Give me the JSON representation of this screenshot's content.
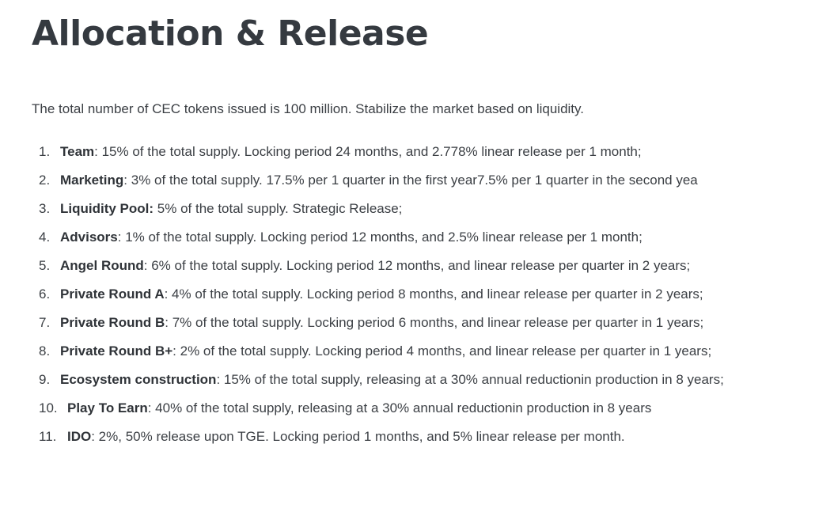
{
  "title": "Allocation & Release",
  "intro": "The total number of CEC tokens issued is 100 million. Stabilize the market based on liquidity.",
  "items": [
    {
      "num": "1.",
      "name": "Team",
      "text": ": 15% of the total supply. Locking period 24 months, and 2.778% linear release per 1 month;"
    },
    {
      "num": "2.",
      "name": "Marketing",
      "text": ": 3% of the total supply. 17.5% per 1 quarter in the first year7.5% per 1 quarter in the second yea"
    },
    {
      "num": "3.",
      "name": "Liquidity Pool:",
      "text": " 5% of the total supply. Strategic Release;"
    },
    {
      "num": "4.",
      "name": "Advisors",
      "text": ": 1% of the total supply.  Locking period 12 months, and 2.5% linear release per 1 month;"
    },
    {
      "num": "5.",
      "name": "Angel Round",
      "text": ": 6% of the total supply. Locking period 12 months, and linear release per quarter in 2 years;"
    },
    {
      "num": "6.",
      "name": "Private Round A",
      "text": ": 4% of the total supply. Locking period 8 months, and linear release per quarter in 2 years;"
    },
    {
      "num": "7.",
      "name": "Private Round B",
      "text": ": 7% of the total supply. Locking period 6 months, and linear release per quarter in 1 years;"
    },
    {
      "num": "8.",
      "name": "Private Round B+",
      "text": ":  2% of the total supply. Locking period 4 months, and linear release per quarter in 1 years;"
    },
    {
      "num": "9.",
      "name": "Ecosystem construction",
      "text": ": 15% of the total supply, releasing at a 30% annual reductionin production in 8 years;"
    },
    {
      "num": "10.",
      "name": "Play To Earn",
      "text": ": 40% of the total supply, releasing at a 30% annual reductionin production in 8 years"
    },
    {
      "num": "11.",
      "name": "IDO",
      "text": ": 2%, 50% release upon TGE. Locking period 1 months, and 5% linear release per month."
    }
  ]
}
